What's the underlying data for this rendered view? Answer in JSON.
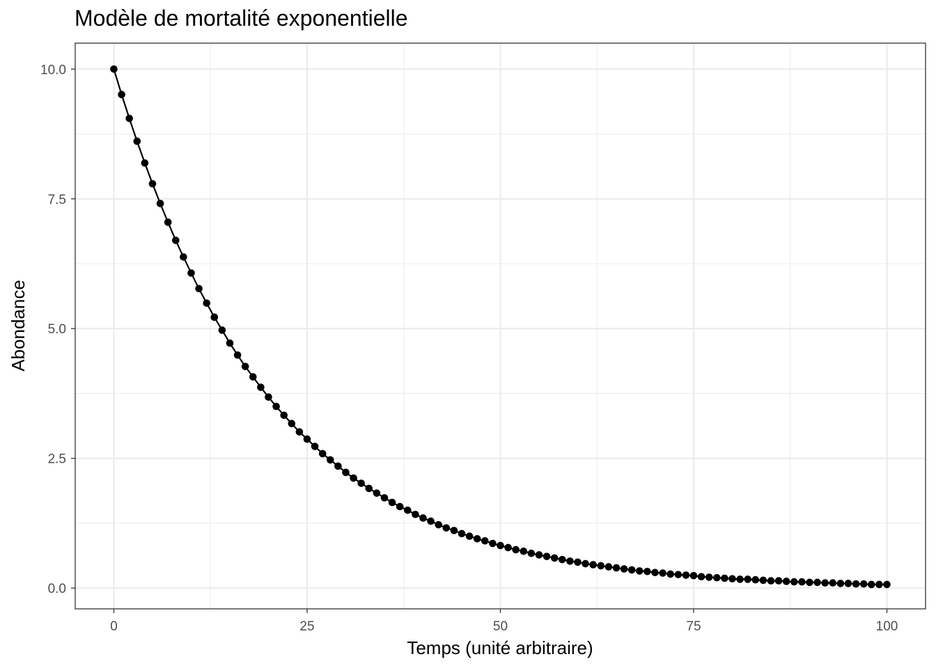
{
  "chart_data": {
    "type": "line",
    "title": "Modèle de mortalité exponentielle",
    "xlabel": "Temps (unité arbitraire)",
    "ylabel": "Abondance",
    "xlim": [
      -5,
      105
    ],
    "ylim": [
      -0.4,
      10.5
    ],
    "x_ticks": [
      0,
      25,
      50,
      75,
      100
    ],
    "x_tick_labels": [
      "0",
      "25",
      "50",
      "75",
      "100"
    ],
    "y_ticks": [
      0,
      2.5,
      5,
      7.5,
      10
    ],
    "y_tick_labels": [
      "0.0",
      "2.5",
      "5.0",
      "7.5",
      "10.0"
    ],
    "grid": true,
    "series": [
      {
        "markers": true,
        "color": "#000000",
        "x_start": 0,
        "x_end": 100,
        "x_step": 1,
        "y": [
          10.0,
          9.51,
          9.05,
          8.61,
          8.19,
          7.79,
          7.41,
          7.05,
          6.7,
          6.38,
          6.07,
          5.77,
          5.49,
          5.22,
          4.97,
          4.72,
          4.49,
          4.27,
          4.07,
          3.87,
          3.68,
          3.5,
          3.33,
          3.17,
          3.01,
          2.87,
          2.73,
          2.59,
          2.47,
          2.35,
          2.23,
          2.12,
          2.02,
          1.92,
          1.83,
          1.74,
          1.65,
          1.57,
          1.5,
          1.42,
          1.35,
          1.29,
          1.22,
          1.16,
          1.11,
          1.05,
          1.0,
          0.95,
          0.91,
          0.86,
          0.82,
          0.78,
          0.74,
          0.71,
          0.67,
          0.64,
          0.61,
          0.58,
          0.55,
          0.52,
          0.5,
          0.47,
          0.45,
          0.43,
          0.41,
          0.39,
          0.37,
          0.35,
          0.33,
          0.32,
          0.3,
          0.29,
          0.27,
          0.26,
          0.25,
          0.24,
          0.22,
          0.21,
          0.2,
          0.19,
          0.18,
          0.17,
          0.17,
          0.16,
          0.15,
          0.14,
          0.14,
          0.13,
          0.12,
          0.12,
          0.11,
          0.11,
          0.1,
          0.1,
          0.09,
          0.09,
          0.08,
          0.08,
          0.07,
          0.07,
          0.07
        ]
      }
    ]
  }
}
